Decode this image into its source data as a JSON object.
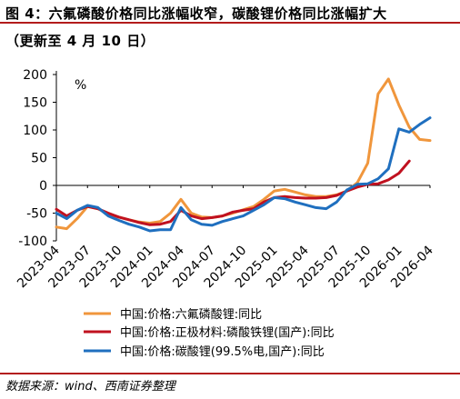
{
  "header": {
    "title_line1": "图 4：六氟磷酸价格同比涨幅收窄，碳酸锂价格同比涨幅扩大",
    "title_line2": "（更新至 4 月 10 日）"
  },
  "footer": {
    "source": "数据来源：wind、西南证券整理"
  },
  "chart_data": {
    "type": "line",
    "unit_label": "%",
    "ylim": [
      -100,
      200
    ],
    "yticks": [
      -100,
      -50,
      0,
      50,
      100,
      150,
      200
    ],
    "x_start": "2023-04",
    "x_end": "2026-04",
    "xticks": [
      "2023-04",
      "2023-07",
      "2023-10",
      "2024-01",
      "2024-04",
      "2024-07",
      "2024-10",
      "2025-01",
      "2025-04",
      "2025-07",
      "2025-10",
      "2026-01",
      "2026-04"
    ],
    "grid": false,
    "legend_position": "bottom",
    "series": [
      {
        "name": "中国:价格:六氟磷酸锂:同比",
        "color": "#f0963c",
        "points": [
          [
            "2023-04",
            -75
          ],
          [
            "2023-05",
            -78
          ],
          [
            "2023-06",
            -60
          ],
          [
            "2023-07",
            -38
          ],
          [
            "2023-08",
            -42
          ],
          [
            "2023-09",
            -52
          ],
          [
            "2023-10",
            -57
          ],
          [
            "2023-11",
            -62
          ],
          [
            "2023-12",
            -66
          ],
          [
            "2024-01",
            -68
          ],
          [
            "2024-02",
            -65
          ],
          [
            "2024-03",
            -50
          ],
          [
            "2024-04",
            -25
          ],
          [
            "2024-05",
            -50
          ],
          [
            "2024-06",
            -57
          ],
          [
            "2024-07",
            -58
          ],
          [
            "2024-08",
            -55
          ],
          [
            "2024-09",
            -50
          ],
          [
            "2024-10",
            -44
          ],
          [
            "2024-11",
            -38
          ],
          [
            "2024-12",
            -25
          ],
          [
            "2025-01",
            -10
          ],
          [
            "2025-02",
            -7
          ],
          [
            "2025-03",
            -12
          ],
          [
            "2025-04",
            -17
          ],
          [
            "2025-05",
            -20
          ],
          [
            "2025-06",
            -20
          ],
          [
            "2025-07",
            -17
          ],
          [
            "2025-08",
            -10
          ],
          [
            "2025-09",
            5
          ],
          [
            "2025-10",
            40
          ],
          [
            "2025-11",
            165
          ],
          [
            "2025-12",
            192
          ],
          [
            "2026-01",
            145
          ],
          [
            "2026-02",
            105
          ],
          [
            "2026-03",
            83
          ],
          [
            "2026-04",
            81
          ]
        ]
      },
      {
        "name": "中国:价格:正极材料:磷酸铁锂(国产):同比",
        "color": "#c0111f",
        "points": [
          [
            "2023-04",
            -43
          ],
          [
            "2023-05",
            -55
          ],
          [
            "2023-06",
            -45
          ],
          [
            "2023-07",
            -38
          ],
          [
            "2023-08",
            -42
          ],
          [
            "2023-09",
            -50
          ],
          [
            "2023-10",
            -57
          ],
          [
            "2023-11",
            -62
          ],
          [
            "2023-12",
            -67
          ],
          [
            "2024-01",
            -71
          ],
          [
            "2024-02",
            -70
          ],
          [
            "2024-03",
            -65
          ],
          [
            "2024-04",
            -45
          ],
          [
            "2024-05",
            -55
          ],
          [
            "2024-06",
            -60
          ],
          [
            "2024-07",
            -58
          ],
          [
            "2024-08",
            -55
          ],
          [
            "2024-09",
            -48
          ],
          [
            "2024-10",
            -45
          ],
          [
            "2024-11",
            -42
          ],
          [
            "2024-12",
            -30
          ],
          [
            "2025-01",
            -22
          ],
          [
            "2025-02",
            -20
          ],
          [
            "2025-03",
            -22
          ],
          [
            "2025-04",
            -23
          ],
          [
            "2025-05",
            -23
          ],
          [
            "2025-06",
            -22
          ],
          [
            "2025-07",
            -18
          ],
          [
            "2025-08",
            -10
          ],
          [
            "2025-09",
            -3
          ],
          [
            "2025-10",
            2
          ],
          [
            "2025-11",
            3
          ],
          [
            "2025-12",
            10
          ],
          [
            "2026-01",
            22
          ],
          [
            "2026-02",
            44
          ]
        ]
      },
      {
        "name": "中国:价格:碳酸锂(99.5%电,国产):同比",
        "color": "#1f6fbf",
        "points": [
          [
            "2023-04",
            -50
          ],
          [
            "2023-05",
            -60
          ],
          [
            "2023-06",
            -45
          ],
          [
            "2023-07",
            -36
          ],
          [
            "2023-08",
            -40
          ],
          [
            "2023-09",
            -55
          ],
          [
            "2023-10",
            -63
          ],
          [
            "2023-11",
            -70
          ],
          [
            "2023-12",
            -75
          ],
          [
            "2024-01",
            -82
          ],
          [
            "2024-02",
            -80
          ],
          [
            "2024-03",
            -80
          ],
          [
            "2024-04",
            -40
          ],
          [
            "2024-05",
            -62
          ],
          [
            "2024-06",
            -70
          ],
          [
            "2024-07",
            -72
          ],
          [
            "2024-08",
            -65
          ],
          [
            "2024-09",
            -60
          ],
          [
            "2024-10",
            -55
          ],
          [
            "2024-11",
            -45
          ],
          [
            "2024-12",
            -35
          ],
          [
            "2025-01",
            -22
          ],
          [
            "2025-02",
            -24
          ],
          [
            "2025-03",
            -30
          ],
          [
            "2025-04",
            -35
          ],
          [
            "2025-05",
            -40
          ],
          [
            "2025-06",
            -42
          ],
          [
            "2025-07",
            -30
          ],
          [
            "2025-08",
            -8
          ],
          [
            "2025-09",
            2
          ],
          [
            "2025-10",
            3
          ],
          [
            "2025-11",
            12
          ],
          [
            "2025-12",
            30
          ],
          [
            "2026-01",
            102
          ],
          [
            "2026-02",
            96
          ],
          [
            "2026-03",
            110
          ],
          [
            "2026-04",
            122
          ]
        ]
      }
    ]
  }
}
